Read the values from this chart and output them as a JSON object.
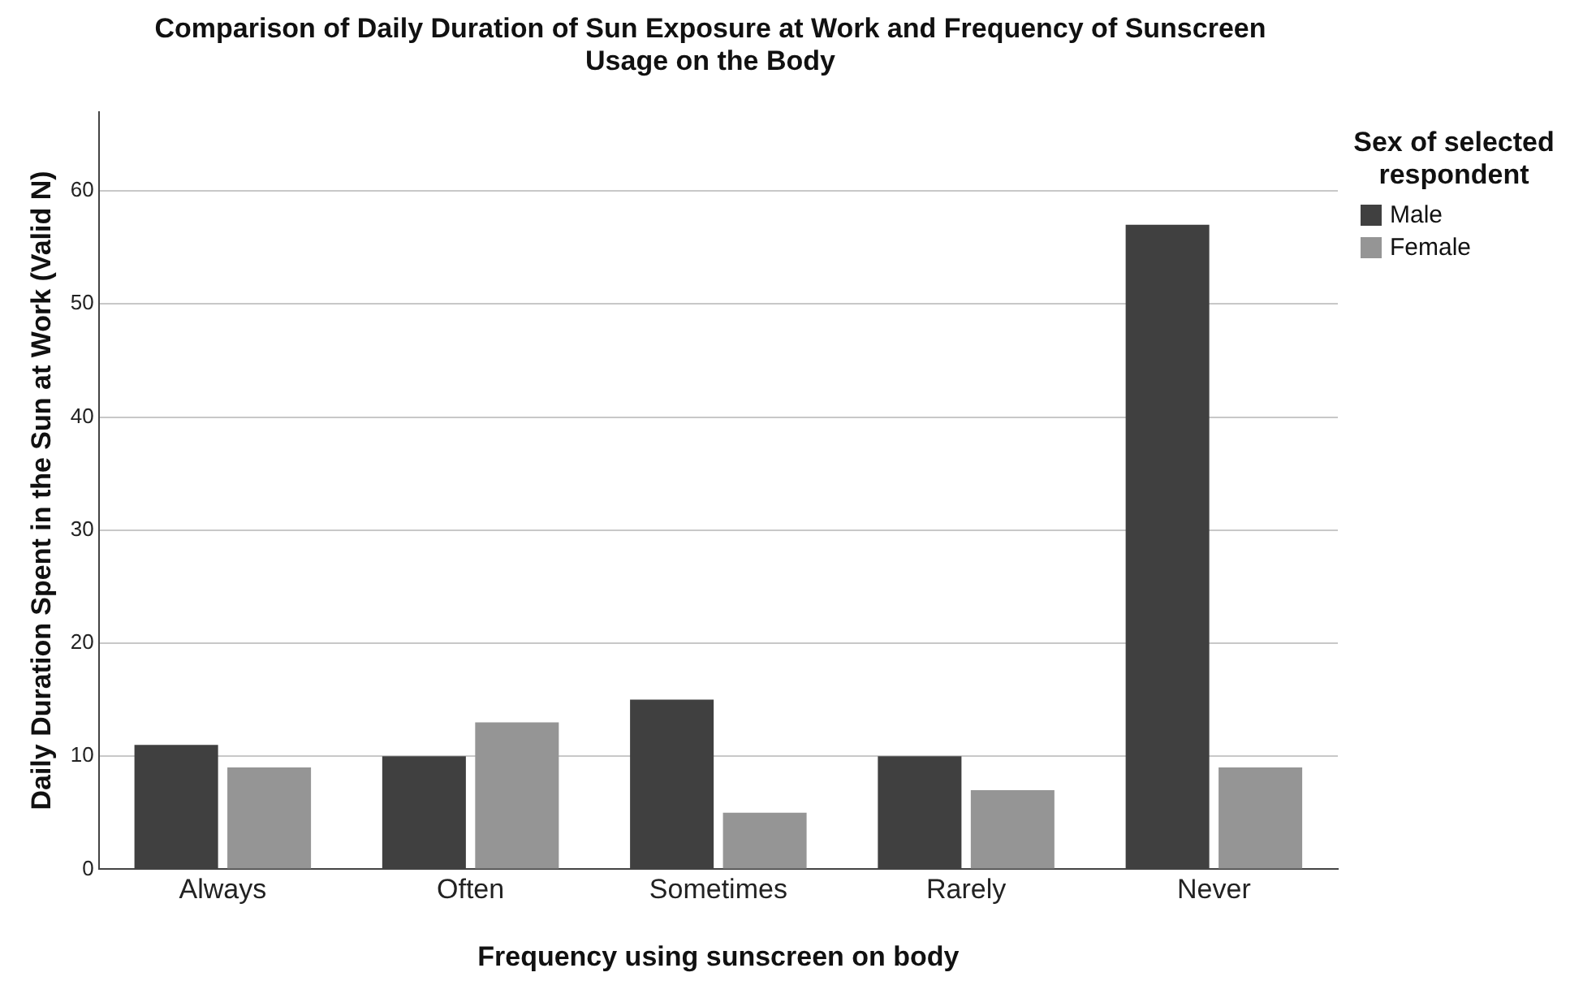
{
  "chart_data": {
    "type": "bar",
    "title": "Comparison of Daily Duration of Sun Exposure at Work and Frequency of Sunscreen Usage on the Body",
    "xlabel": "Frequency using sunscreen on body",
    "ylabel": "Daily Duration Spent in the Sun at Work (Valid N)",
    "legend_title": "Sex of selected respondent",
    "categories": [
      "Always",
      "Often",
      "Sometimes",
      "Rarely",
      "Never"
    ],
    "series": [
      {
        "name": "Male",
        "color": "#404040",
        "values": [
          11,
          10,
          15,
          10,
          57
        ]
      },
      {
        "name": "Female",
        "color": "#959595",
        "values": [
          9,
          13,
          5,
          7,
          9
        ]
      }
    ],
    "ylim": [
      0,
      67
    ],
    "yticks": [
      0,
      10,
      20,
      30,
      40,
      50,
      60
    ],
    "grid": "y",
    "legend": "top right"
  }
}
